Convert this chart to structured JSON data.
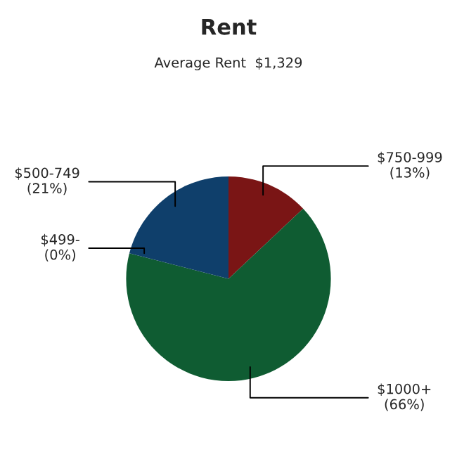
{
  "chart_data": {
    "type": "pie",
    "title": "Rent",
    "subtitle": "Average Rent  $1,329",
    "categories": [
      "$750-999",
      "$1000+",
      "$499-",
      "$500-749"
    ],
    "values": [
      13,
      66,
      0,
      21
    ],
    "value_labels": [
      "(13%)",
      "(66%)",
      "(0%)",
      "(21%)"
    ],
    "colors": [
      "#7a1515",
      "#0f5c32",
      "#1f4f2f",
      "#0f3f6b"
    ],
    "legend": false
  }
}
